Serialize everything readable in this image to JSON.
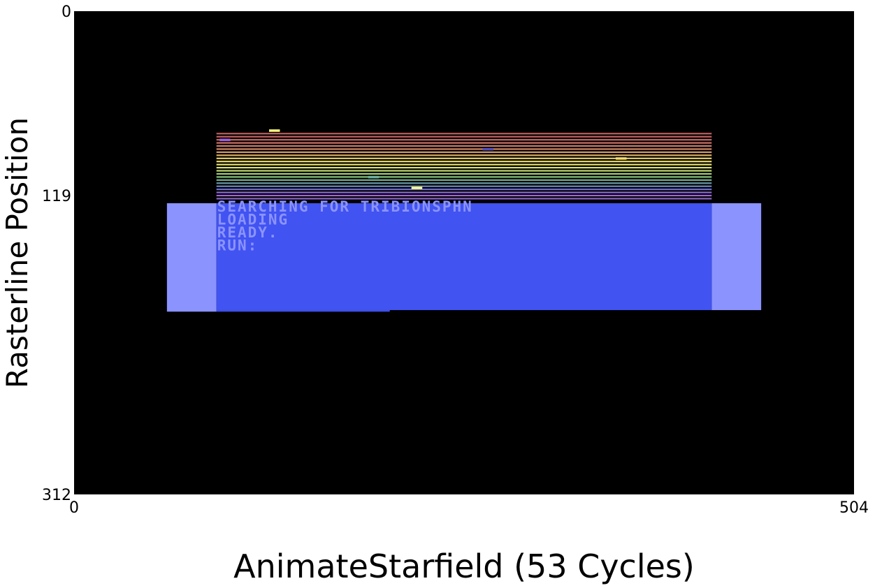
{
  "chart_data": {
    "type": "heatmap",
    "title": "",
    "xlabel": "AnimateStarfield (53 Cycles)",
    "ylabel": "Rasterline Position",
    "xlim": [
      0,
      504
    ],
    "ylim": [
      312,
      0
    ],
    "x_ticks": [
      {
        "value": 0,
        "label": "0"
      },
      {
        "value": 504,
        "label": "504"
      }
    ],
    "y_ticks": [
      {
        "value": 0,
        "label": "0"
      },
      {
        "value": 119,
        "label": "119"
      },
      {
        "value": 312,
        "label": "312"
      }
    ],
    "background_color": "#000000",
    "regions": [
      {
        "name": "border-left",
        "x0": 60,
        "x1": 92,
        "y0": 124,
        "y1": 194,
        "color": "#8b93ff"
      },
      {
        "name": "border-right",
        "x0": 412,
        "x1": 444,
        "y0": 124,
        "y1": 193,
        "color": "#8b93ff"
      },
      {
        "name": "screen",
        "x0": 92,
        "x1": 412,
        "y0": 124,
        "y1": 193,
        "color": "#4153f0"
      },
      {
        "name": "screen-bottom-left",
        "x0": 92,
        "x1": 204,
        "y0": 193,
        "y1": 194,
        "color": "#4153f0"
      }
    ],
    "stripes": {
      "x0": 92,
      "x1": 412,
      "rows": [
        {
          "y": 79,
          "color": "#c06060"
        },
        {
          "y": 81,
          "color": "#c06060"
        },
        {
          "y": 83,
          "color": "#c86a66"
        },
        {
          "y": 85,
          "color": "#cc7366"
        },
        {
          "y": 87,
          "color": "#d07a66"
        },
        {
          "y": 89,
          "color": "#d48a66"
        },
        {
          "y": 91,
          "color": "#d99866"
        },
        {
          "y": 93,
          "color": "#ddb066"
        },
        {
          "y": 95,
          "color": "#e6d066"
        },
        {
          "y": 97,
          "color": "#f0e070"
        },
        {
          "y": 99,
          "color": "#e8e070"
        },
        {
          "y": 101,
          "color": "#d8e070"
        },
        {
          "y": 103,
          "color": "#c0d870"
        },
        {
          "y": 105,
          "color": "#a0d070"
        },
        {
          "y": 107,
          "color": "#88c880"
        },
        {
          "y": 109,
          "color": "#70b090"
        },
        {
          "y": 111,
          "color": "#6a9aa8"
        },
        {
          "y": 113,
          "color": "#6a88c0"
        },
        {
          "y": 115,
          "color": "#7070d0"
        },
        {
          "y": 117,
          "color": "#8a6ad8"
        },
        {
          "y": 119,
          "color": "#a066d8"
        },
        {
          "y": 121,
          "color": "#8a66c8"
        }
      ]
    },
    "stars": [
      {
        "x": 126,
        "y": 77,
        "w": 7,
        "color": "#ffff80"
      },
      {
        "x": 94,
        "y": 83,
        "w": 7,
        "color": "#a060e0"
      },
      {
        "x": 264,
        "y": 89,
        "w": 7,
        "color": "#5050c0"
      },
      {
        "x": 350,
        "y": 95,
        "w": 7,
        "color": "#ffe070"
      },
      {
        "x": 190,
        "y": 107,
        "w": 7,
        "color": "#70b0a0"
      },
      {
        "x": 218,
        "y": 114,
        "w": 7,
        "color": "#ffff80"
      }
    ],
    "screen_text": {
      "color": "#8b93ff",
      "lines": [
        "SEARCHING FOR TRIBIONSPHN",
        "LOADING",
        "READY.",
        "RUN:"
      ]
    }
  }
}
